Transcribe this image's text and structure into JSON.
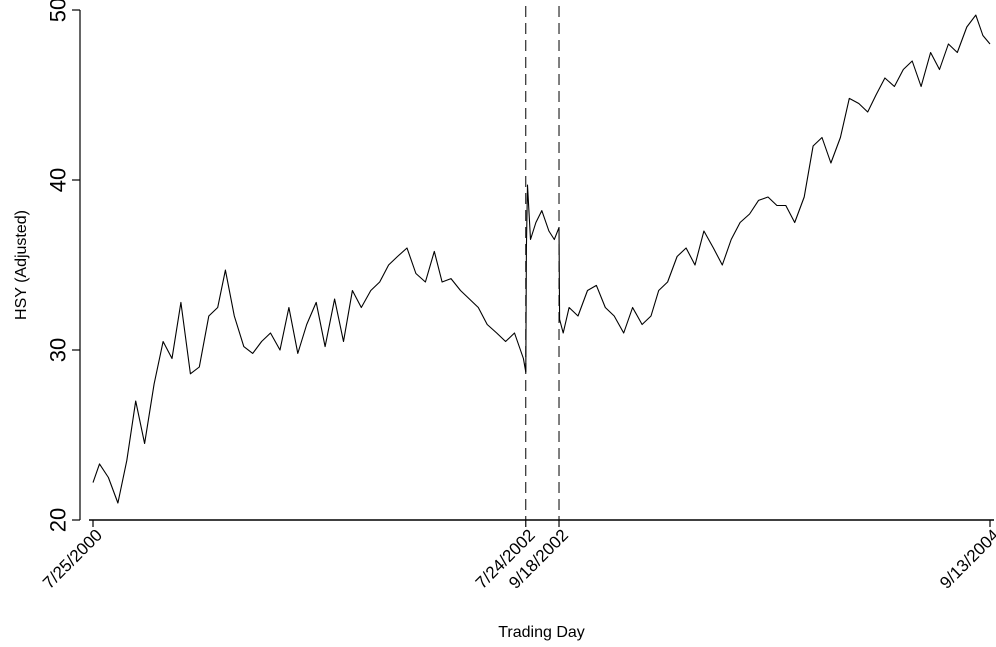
{
  "chart_data": {
    "type": "line",
    "title": "",
    "xlabel": "Trading Day",
    "ylabel": "HSY (Adjusted)",
    "ylim": [
      20,
      50
    ],
    "yticks": [
      20,
      30,
      40,
      50
    ],
    "yticklabels": [
      "20",
      "30",
      "40",
      "50"
    ],
    "xlim": [
      "2000-07-25",
      "2004-09-13"
    ],
    "xticks": [
      "2000-07-25",
      "2002-07-24",
      "2002-09-18",
      "2004-09-13"
    ],
    "xticklabels": [
      "7/25/2000",
      "7/24/2002",
      "9/18/2002",
      "9/13/2004"
    ],
    "vlines": [
      {
        "x": "2002-07-24",
        "style": "dashed"
      },
      {
        "x": "2002-09-18",
        "style": "dashed"
      }
    ],
    "grid": false,
    "legend": "none",
    "line_color": "#000000",
    "series": [
      {
        "x": [
          "2000-07-25",
          "2000-08-05",
          "2000-08-20",
          "2000-09-05",
          "2000-09-20",
          "2000-10-05",
          "2000-10-20",
          "2000-11-05",
          "2000-11-20",
          "2000-12-05",
          "2000-12-20",
          "2001-01-05",
          "2001-01-20",
          "2001-02-05",
          "2001-02-20",
          "2001-03-05",
          "2001-03-20",
          "2001-04-05",
          "2001-04-20",
          "2001-05-05",
          "2001-05-20",
          "2001-06-05",
          "2001-06-20",
          "2001-07-05",
          "2001-07-20",
          "2001-08-05",
          "2001-08-20",
          "2001-09-05",
          "2001-09-20",
          "2001-10-05",
          "2001-10-20",
          "2001-11-05",
          "2001-11-20",
          "2001-12-05",
          "2001-12-20",
          "2002-01-05",
          "2002-01-20",
          "2002-02-05",
          "2002-02-20",
          "2002-03-05",
          "2002-03-20",
          "2002-04-05",
          "2002-04-20",
          "2002-05-05",
          "2002-05-20",
          "2002-06-05",
          "2002-06-20",
          "2002-07-05",
          "2002-07-20",
          "2002-07-24",
          "2002-07-25",
          "2002-07-27",
          "2002-08-01",
          "2002-08-10",
          "2002-08-20",
          "2002-09-01",
          "2002-09-10",
          "2002-09-18",
          "2002-09-19",
          "2002-09-25",
          "2002-10-05",
          "2002-10-20",
          "2002-11-05",
          "2002-11-20",
          "2002-12-05",
          "2002-12-20",
          "2003-01-05",
          "2003-01-20",
          "2003-02-05",
          "2003-02-20",
          "2003-03-05",
          "2003-03-20",
          "2003-04-05",
          "2003-04-20",
          "2003-05-05",
          "2003-05-20",
          "2003-06-05",
          "2003-06-20",
          "2003-07-05",
          "2003-07-20",
          "2003-08-05",
          "2003-08-20",
          "2003-09-05",
          "2003-09-20",
          "2003-10-05",
          "2003-10-20",
          "2003-11-05",
          "2003-11-20",
          "2003-12-05",
          "2003-12-20",
          "2004-01-05",
          "2004-01-20",
          "2004-02-05",
          "2004-02-20",
          "2004-03-05",
          "2004-03-20",
          "2004-04-05",
          "2004-04-20",
          "2004-05-05",
          "2004-05-20",
          "2004-06-05",
          "2004-06-20",
          "2004-07-05",
          "2004-07-20",
          "2004-08-05",
          "2004-08-20",
          "2004-09-01",
          "2004-09-13"
        ],
        "y": [
          22.2,
          23.3,
          22.5,
          21.0,
          23.5,
          27.0,
          24.5,
          28.0,
          30.5,
          29.5,
          32.8,
          28.6,
          29.0,
          32.0,
          32.5,
          34.7,
          32.0,
          30.2,
          29.8,
          30.5,
          31.0,
          30.0,
          32.5,
          29.8,
          31.5,
          32.8,
          30.2,
          33.0,
          30.5,
          33.5,
          32.5,
          33.5,
          34.0,
          35.0,
          35.5,
          36.0,
          34.5,
          34.0,
          35.8,
          34.0,
          34.2,
          33.5,
          33.0,
          32.5,
          31.5,
          31.0,
          30.5,
          31.0,
          29.5,
          28.7,
          36.0,
          39.7,
          36.5,
          37.5,
          38.2,
          37.0,
          36.5,
          37.2,
          31.8,
          31.0,
          32.5,
          32.0,
          33.5,
          33.8,
          32.5,
          32.0,
          31.0,
          32.5,
          31.5,
          32.0,
          33.5,
          34.0,
          35.5,
          36.0,
          35.0,
          37.0,
          36.0,
          35.0,
          36.5,
          37.5,
          38.0,
          38.8,
          39.0,
          38.5,
          38.5,
          37.5,
          39.0,
          42.0,
          42.5,
          41.0,
          42.5,
          44.8,
          44.5,
          44.0,
          45.0,
          46.0,
          45.5,
          46.5,
          47.0,
          45.5,
          47.5,
          46.5,
          48.0,
          47.5,
          49.0,
          49.7,
          48.5,
          48.0
        ]
      }
    ]
  }
}
